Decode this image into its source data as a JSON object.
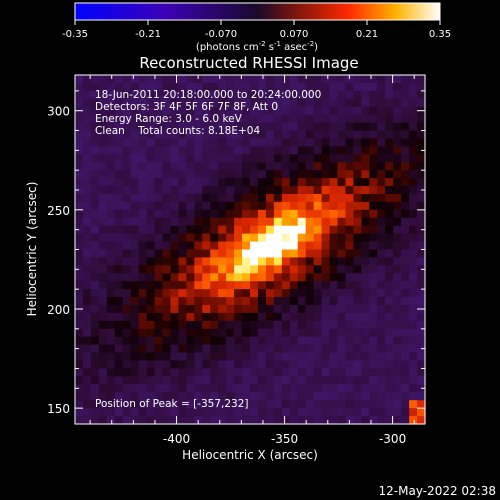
{
  "chart_data": {
    "type": "heatmap",
    "title": "Reconstructed RHESSI Image",
    "xlabel": "Heliocentric X (arcsec)",
    "ylabel": "Heliocentric Y (arcsec)",
    "xlim": [
      -447,
      -285
    ],
    "ylim": [
      142,
      318
    ],
    "x_ticks": [
      -400,
      -350,
      -300
    ],
    "y_ticks": [
      150,
      200,
      250,
      300
    ],
    "colorbar": {
      "min": -0.35,
      "max": 0.35,
      "ticks": [
        "-0.35",
        "-0.21",
        "-0.070",
        "0.070",
        "0.21",
        "0.35"
      ],
      "units_prefix": "(photons cm",
      "units_exp1": "-2",
      "units_mid": " s",
      "units_exp2": "-1",
      "units_mid2": " asec",
      "units_exp3": "-2",
      "units_suffix": ")"
    },
    "info_lines": [
      "18-Jun-2011 20:18:00.000 to 20:24:00.000",
      "Detectors: 3F 4F 5F 6F 7F 8F, Att 0",
      "Energy Range: 3.0 - 6.0 keV",
      "Clean    Total counts: 8.18E+04"
    ],
    "peak_label": "Position of Peak = [-357,232]",
    "peak": {
      "x": -357,
      "y": 232,
      "value": 0.35
    },
    "source_model": {
      "description": "elongated emission along the diagonal",
      "ridge": [
        [
          -420,
          190
        ],
        [
          -300,
          270
        ]
      ],
      "background_value": -0.1
    },
    "timestamp": "12-May-2022 02:38"
  }
}
